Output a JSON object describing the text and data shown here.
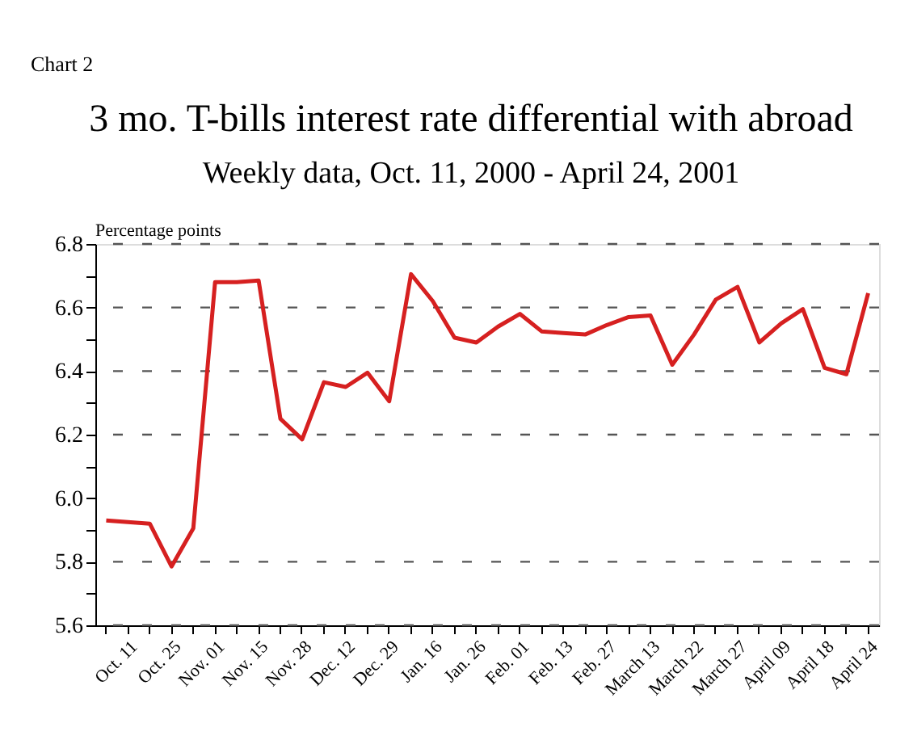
{
  "chart_data": {
    "type": "line",
    "title": "3 mo. T-bills interest rate differential with abroad",
    "subtitle": "Weekly data, Oct. 11, 2000 - April 24, 2001",
    "ylabel": "Percentage points",
    "annotations": [
      "Chart 2"
    ],
    "categories": [
      null,
      "Oct. 11",
      null,
      "Oct. 25",
      null,
      "Nov. 01",
      null,
      "Nov. 15",
      null,
      "Nov. 28",
      null,
      "Dec. 12",
      null,
      "Dec. 29",
      null,
      "Jan. 16",
      null,
      "Jan. 26",
      null,
      "Feb. 01",
      null,
      "Feb. 13",
      null,
      "Feb. 27",
      null,
      "March 13",
      null,
      "March 22",
      null,
      "March 27",
      null,
      "April 09",
      null,
      "April 18",
      null,
      "April 24"
    ],
    "series": [
      {
        "color": "#d62020",
        "values": [
          5.93,
          5.925,
          5.92,
          5.785,
          5.905,
          6.68,
          6.68,
          6.685,
          6.25,
          6.185,
          6.365,
          6.35,
          6.395,
          6.305,
          6.705,
          6.62,
          6.505,
          6.49,
          6.54,
          6.58,
          6.525,
          6.52,
          6.515,
          6.545,
          6.57,
          6.575,
          6.42,
          6.515,
          6.625,
          6.665,
          6.49,
          6.55,
          6.595,
          6.41,
          6.39,
          6.645
        ]
      }
    ],
    "ylim": [
      5.6,
      6.8
    ],
    "yticks": [
      5.6,
      {
        "value": 5.7,
        "label": null
      },
      5.8,
      {
        "value": 5.9,
        "label": null
      },
      {
        "value": 6.0,
        "label": "6.0"
      },
      {
        "value": 6.1,
        "label": null
      },
      6.2,
      {
        "value": 6.3,
        "label": null
      },
      6.4,
      {
        "value": 6.5,
        "label": null
      },
      6.6,
      {
        "value": 6.7,
        "label": null
      },
      6.8
    ],
    "grid": "y",
    "marker": "none",
    "line_style": "solid"
  }
}
